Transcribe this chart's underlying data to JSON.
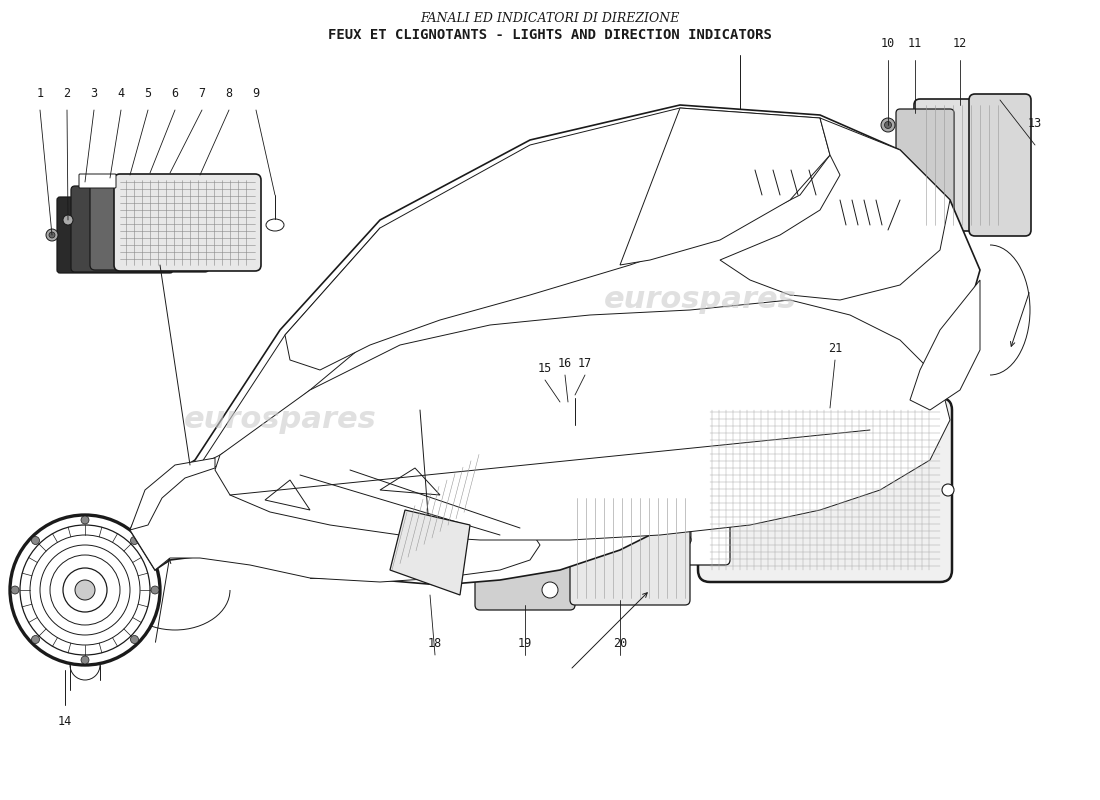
{
  "title_line1": "FANALI ED INDICATORI DI DIREZIONE",
  "title_line2": "FEUX ET CLIGNOTANTS - LIGHTS AND DIRECTION INDICATORS",
  "bg_color": "#ffffff",
  "line_color": "#1a1a1a",
  "watermark1": "eurospares",
  "watermark2": "eurospares",
  "label_fontsize": 8.5,
  "title_fontsize1": 9,
  "title_fontsize2": 10
}
